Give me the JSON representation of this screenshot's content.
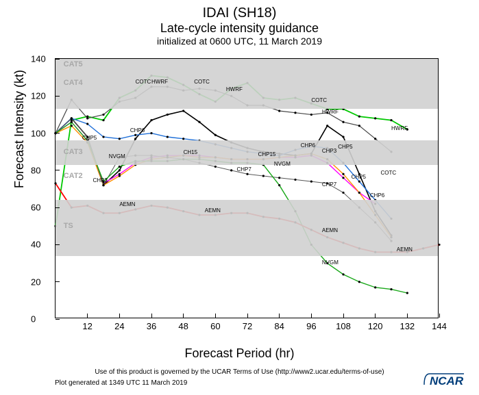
{
  "titles": {
    "main": "IDAI (SH18)",
    "sub": "Late-cycle intensity guidance",
    "init": "initialized at 0600 UTC, 11 March 2019"
  },
  "axes": {
    "xlabel": "Forecast Period (hr)",
    "ylabel": "Forecast Intensity (kt)",
    "xlim": [
      0,
      144
    ],
    "ylim": [
      0,
      140
    ],
    "xtick_step": 12,
    "ytick_step": 20,
    "label_fontsize": 18,
    "tick_fontsize": 13
  },
  "bands": [
    {
      "label": "CAT5",
      "ymin": 135,
      "ymax": 140
    },
    {
      "label": "CAT4",
      "ymin": 113,
      "ymax": 135
    },
    {
      "label": "CAT3",
      "ymin": 83,
      "ymax": 96
    },
    {
      "label": "CAT2",
      "ymin": 64,
      "ymax": 83,
      "show_label_only": true
    },
    {
      "label": "TS",
      "ymin": 34,
      "ymax": 64
    }
  ],
  "band_color": "#d0d0d0",
  "band_label_color": "#a8a8a8",
  "background_color": "#ffffff",
  "series": [
    {
      "name": "COTC",
      "color": "#00c800",
      "width": 1.8,
      "markers": true,
      "x": [
        0,
        6,
        12,
        18,
        24,
        30,
        36,
        42,
        48,
        54,
        60,
        66,
        72,
        78,
        84,
        90,
        96,
        102,
        108,
        114,
        120,
        126,
        132
      ],
      "y": [
        50,
        107,
        109,
        107,
        119,
        123,
        131,
        130,
        126,
        121,
        117,
        124,
        127,
        119,
        118,
        119,
        116,
        113,
        113,
        109,
        108,
        107,
        102
      ]
    },
    {
      "name": "HWRF",
      "color": "#444444",
      "width": 1.2,
      "markers": true,
      "x": [
        0,
        6,
        12,
        18,
        24,
        30,
        36,
        42,
        48,
        54,
        60,
        66,
        72,
        78,
        84,
        90,
        96,
        102,
        108,
        114,
        120,
        126
      ],
      "y": [
        100,
        118,
        108,
        110,
        117,
        119,
        125,
        125,
        123,
        124,
        123,
        120,
        115,
        115,
        112,
        111,
        110,
        111,
        106,
        104,
        97,
        90
      ]
    },
    {
      "name": "CHP5",
      "color": "#000000",
      "width": 1.6,
      "markers": true,
      "x": [
        0,
        6,
        12,
        18,
        24,
        30,
        36,
        42,
        48,
        54,
        60,
        66,
        72,
        78,
        84,
        90,
        96,
        102,
        108,
        114,
        120,
        126
      ],
      "y": [
        100,
        108,
        98,
        72,
        80,
        97,
        107,
        110,
        112,
        106,
        99,
        95,
        92,
        90,
        89,
        88,
        89,
        104,
        98,
        78,
        58,
        45
      ]
    },
    {
      "name": "CHP6",
      "color": "#2070d8",
      "width": 1.4,
      "markers": true,
      "x": [
        0,
        6,
        12,
        18,
        24,
        30,
        36,
        42,
        48,
        54,
        60,
        66,
        72,
        78,
        84,
        90,
        96,
        102,
        108,
        114,
        120,
        126
      ],
      "y": [
        100,
        108,
        105,
        98,
        97,
        99,
        100,
        98,
        97,
        96,
        94,
        92,
        90,
        89,
        88,
        91,
        93,
        92,
        84,
        74,
        64,
        54
      ]
    },
    {
      "name": "CH15",
      "color": "#ff00ff",
      "width": 1.4,
      "markers": true,
      "x": [
        0,
        6,
        12,
        18,
        24,
        30,
        36,
        42,
        48,
        54,
        60,
        66,
        72,
        78,
        84,
        90,
        96,
        102,
        108,
        114,
        120
      ],
      "y": [
        100,
        106,
        96,
        73,
        78,
        84,
        87,
        88,
        88,
        88,
        87,
        86,
        86,
        86,
        87,
        87,
        88,
        84,
        76,
        68,
        62
      ]
    },
    {
      "name": "CHP3",
      "color": "#ff9000",
      "width": 1.4,
      "markers": true,
      "x": [
        0,
        6,
        12,
        18,
        24,
        30,
        36,
        42,
        48,
        54,
        60,
        66,
        72,
        78,
        84,
        90,
        96,
        102,
        108,
        114,
        120,
        126
      ],
      "y": [
        100,
        104,
        95,
        72,
        77,
        83,
        86,
        87,
        88,
        87,
        87,
        86,
        86,
        86,
        87,
        88,
        89,
        86,
        78,
        68,
        56,
        44
      ]
    },
    {
      "name": "CHP7",
      "color": "#555555",
      "width": 1.0,
      "markers": true,
      "x": [
        0,
        6,
        12,
        18,
        24,
        30,
        36,
        42,
        48,
        54,
        60,
        66,
        72,
        78,
        84,
        90,
        96,
        102,
        108,
        114,
        120,
        126
      ],
      "y": [
        100,
        108,
        98,
        72,
        87,
        88,
        88,
        87,
        86,
        84,
        82,
        80,
        78,
        77,
        76,
        75,
        74,
        73,
        68,
        60,
        52,
        42
      ]
    },
    {
      "name": "NVGM",
      "color": "#1aa81a",
      "width": 1.4,
      "markers": true,
      "x": [
        0,
        6,
        12,
        18,
        24,
        30,
        36,
        42,
        48,
        54,
        60,
        66,
        72,
        78,
        84,
        90,
        96,
        102,
        108,
        114,
        120,
        126,
        132
      ],
      "y": [
        100,
        106,
        96,
        74,
        82,
        85,
        85,
        85,
        86,
        86,
        85,
        84,
        84,
        83,
        72,
        58,
        40,
        30,
        24,
        20,
        17,
        16,
        14
      ]
    },
    {
      "name": "AEMN",
      "color": "#ff0000",
      "width": 1.8,
      "markers": true,
      "x": [
        0,
        6,
        12,
        18,
        24,
        30,
        36,
        42,
        48,
        54,
        60,
        66,
        72,
        78,
        84,
        90,
        96,
        102,
        108,
        114,
        120,
        126,
        132,
        138,
        144
      ],
      "y": [
        73,
        60,
        61,
        57,
        57,
        59,
        61,
        60,
        58,
        56,
        56,
        57,
        57,
        55,
        54,
        52,
        48,
        44,
        41,
        38,
        36,
        36,
        36,
        38,
        40
      ]
    }
  ],
  "series_labels": [
    {
      "text": "CAT5",
      "x": 3,
      "y": 137,
      "color": "#a8a8a8",
      "size": 11,
      "bold": true
    },
    {
      "text": "CAT4",
      "x": 3,
      "y": 127,
      "color": "#a8a8a8",
      "size": 11,
      "bold": true
    },
    {
      "text": "CAT3",
      "x": 3,
      "y": 90,
      "color": "#a8a8a8",
      "size": 11,
      "bold": true
    },
    {
      "text": "CAT2",
      "x": 3,
      "y": 77,
      "color": "#a8a8a8",
      "size": 11,
      "bold": true
    },
    {
      "text": "TS",
      "x": 3,
      "y": 50,
      "color": "#a8a8a8",
      "size": 11,
      "bold": true
    },
    {
      "text": "COTC",
      "x": 30,
      "y": 127
    },
    {
      "text": "COTC",
      "x": 52,
      "y": 127
    },
    {
      "text": "COTC",
      "x": 96,
      "y": 117
    },
    {
      "text": "COTC",
      "x": 122,
      "y": 78
    },
    {
      "text": "HWRF",
      "x": 36,
      "y": 127
    },
    {
      "text": "HWRF",
      "x": 64,
      "y": 123
    },
    {
      "text": "HWRF",
      "x": 100,
      "y": 111
    },
    {
      "text": "HWRF",
      "x": 126,
      "y": 102
    },
    {
      "text": "CHP5",
      "x": 10,
      "y": 97
    },
    {
      "text": "CHP5",
      "x": 106,
      "y": 92
    },
    {
      "text": "CHP5",
      "x": 111,
      "y": 76
    },
    {
      "text": "CHP6",
      "x": 28,
      "y": 101
    },
    {
      "text": "CHP6",
      "x": 92,
      "y": 93
    },
    {
      "text": "CHP6",
      "x": 118,
      "y": 66
    },
    {
      "text": "CHP3",
      "x": 14,
      "y": 74
    },
    {
      "text": "CHP3",
      "x": 100,
      "y": 90
    },
    {
      "text": "CH15",
      "x": 48,
      "y": 89
    },
    {
      "text": "CHP15",
      "x": 76,
      "y": 88
    },
    {
      "text": "CHP7",
      "x": 68,
      "y": 80
    },
    {
      "text": "CHP7",
      "x": 100,
      "y": 72
    },
    {
      "text": "NVGM",
      "x": 20,
      "y": 87
    },
    {
      "text": "NVGM",
      "x": 82,
      "y": 83
    },
    {
      "text": "NVGM",
      "x": 100,
      "y": 30
    },
    {
      "text": "AEMN",
      "x": 24,
      "y": 61
    },
    {
      "text": "AEMN",
      "x": 56,
      "y": 58
    },
    {
      "text": "AEMN",
      "x": 100,
      "y": 47
    },
    {
      "text": "AEMN",
      "x": 128,
      "y": 37
    }
  ],
  "footer": {
    "terms": "Use of this product is governed by the UCAR Terms of Use (http://www2.ucar.edu/terms-of-use)",
    "generated": "Plot generated at 1349 UTC   11 March 2019",
    "logo": "NCAR"
  }
}
